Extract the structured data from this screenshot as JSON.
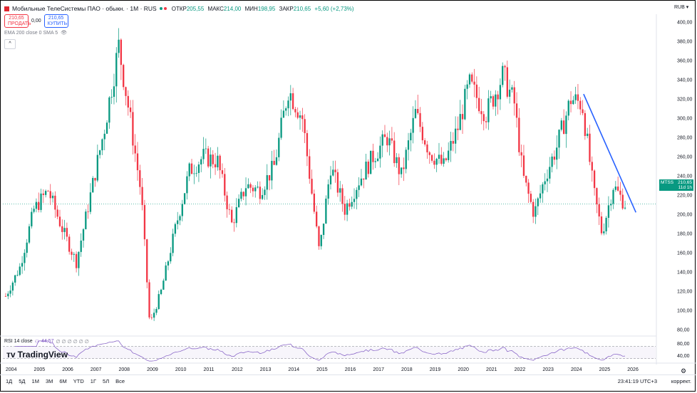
{
  "header": {
    "title": "Мобильные ТелеСистемы ПАО · обыкн. · 1M · RUS",
    "open_label": "ОТКР",
    "open": "205,55",
    "high_label": "МАКС",
    "high": "214,00",
    "low_label": "МИН",
    "low": "198,95",
    "close_label": "ЗАКР",
    "close": "210,65",
    "change": "+5,60 (+2,73%)",
    "currency": "RUB"
  },
  "trade": {
    "sell_price": "210,65",
    "sell_label": "ПРОДАТЬ",
    "spread": "0,00",
    "buy_price": "210,65",
    "buy_label": "КУПИТЬ"
  },
  "indicator_label": "EMA 200 close 0 SMA 5",
  "rsi_label": "RSI 14 close",
  "rsi_value": "44,57",
  "rsi_extra": "∅ ∅ ∅ ∅ ∅ ∅",
  "brand": "TradingView",
  "price_tag": {
    "symbol": "MTSS",
    "price": "210,65",
    "countdown": "11d 1h"
  },
  "timeframes": [
    "1Д",
    "5Д",
    "1М",
    "3М",
    "6М",
    "YTD",
    "1Г",
    "5Л",
    "Все"
  ],
  "clock": "23:41:19 UTC+3",
  "adjust_label": "коррект.",
  "colors": {
    "up": "#089981",
    "down": "#f23645",
    "trend": "#2962ff",
    "rsi": "#7e57c2"
  },
  "chart_data": {
    "type": "candlestick",
    "x_ticks": [
      "2004",
      "2005",
      "2006",
      "2007",
      "2008",
      "2009",
      "2010",
      "2011",
      "2012",
      "2013",
      "2014",
      "2015",
      "2016",
      "2017",
      "2018",
      "2019",
      "2020",
      "2021",
      "2022",
      "2023",
      "2024",
      "2025",
      "2026"
    ],
    "y_ticks": [
      "400,00",
      "380,00",
      "360,00",
      "340,00",
      "320,00",
      "300,00",
      "280,00",
      "260,00",
      "240,00",
      "220,00",
      "200,00",
      "180,00",
      "160,00",
      "140,00",
      "120,00",
      "100,00",
      "80,00"
    ],
    "ylim": [
      75,
      405
    ],
    "rsi_ticks": [
      "80,00",
      "40,00"
    ],
    "rsi_ylim": [
      20,
      90
    ],
    "current_price": 210.65,
    "series_yearly_path": [
      [
        2003.8,
        115
      ],
      [
        2004.3,
        145
      ],
      [
        2004.8,
        205
      ],
      [
        2005.3,
        225
      ],
      [
        2005.8,
        185
      ],
      [
        2006.3,
        150
      ],
      [
        2006.8,
        220
      ],
      [
        2007.3,
        290
      ],
      [
        2007.8,
        375
      ],
      [
        2008.2,
        300
      ],
      [
        2008.6,
        220
      ],
      [
        2008.9,
        85
      ],
      [
        2009.3,
        120
      ],
      [
        2009.8,
        185
      ],
      [
        2010.3,
        245
      ],
      [
        2010.8,
        260
      ],
      [
        2011.3,
        255
      ],
      [
        2011.8,
        190
      ],
      [
        2012.3,
        230
      ],
      [
        2012.8,
        225
      ],
      [
        2013.3,
        250
      ],
      [
        2013.8,
        330
      ],
      [
        2014.3,
        300
      ],
      [
        2014.9,
        160
      ],
      [
        2015.3,
        250
      ],
      [
        2015.8,
        205
      ],
      [
        2016.3,
        235
      ],
      [
        2016.8,
        260
      ],
      [
        2017.3,
        280
      ],
      [
        2017.8,
        240
      ],
      [
        2018.3,
        305
      ],
      [
        2018.8,
        265
      ],
      [
        2019.3,
        250
      ],
      [
        2019.8,
        290
      ],
      [
        2020.2,
        335
      ],
      [
        2020.8,
        305
      ],
      [
        2021.4,
        345
      ],
      [
        2021.8,
        315
      ],
      [
        2022.1,
        240
      ],
      [
        2022.5,
        200
      ],
      [
        2022.9,
        240
      ],
      [
        2023.3,
        270
      ],
      [
        2023.8,
        320
      ],
      [
        2024.2,
        315
      ],
      [
        2024.6,
        225
      ],
      [
        2024.9,
        180
      ],
      [
        2025.3,
        230
      ],
      [
        2025.7,
        211
      ]
    ],
    "trendline": [
      [
        2024.25,
        325
      ],
      [
        2026.1,
        202
      ]
    ]
  }
}
